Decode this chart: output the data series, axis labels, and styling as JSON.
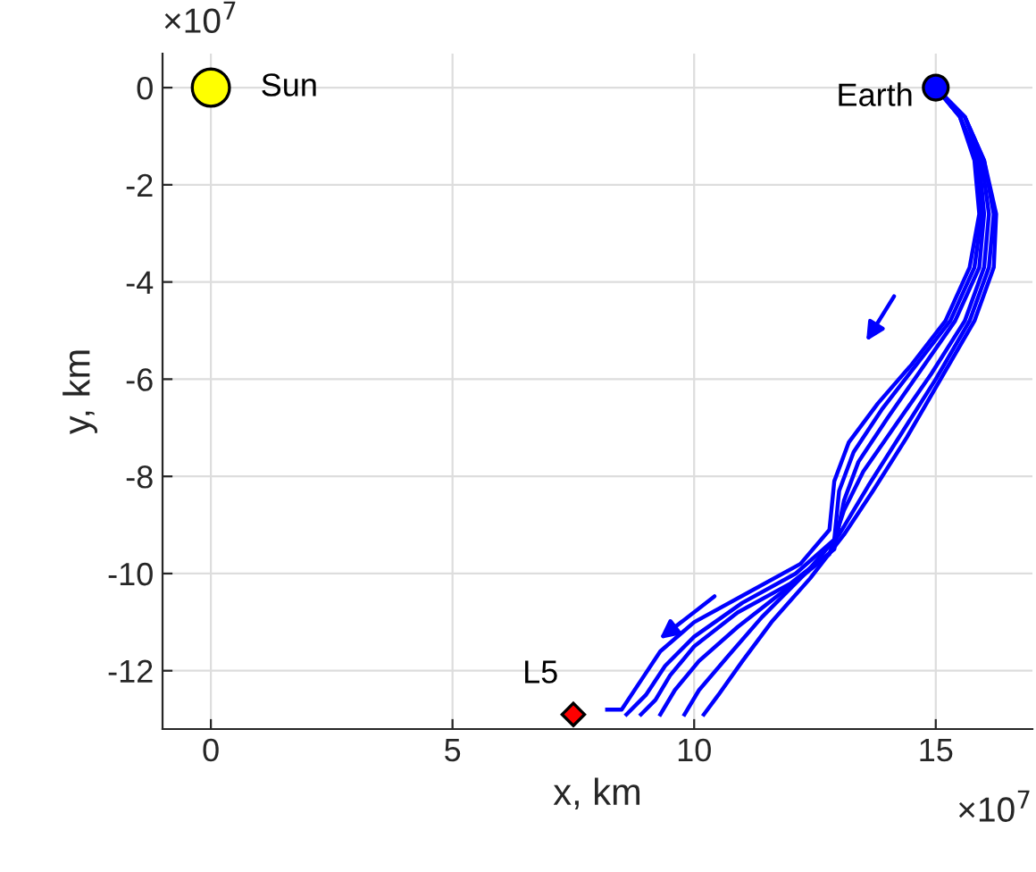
{
  "chart_data": {
    "type": "line",
    "xlabel": "x, km",
    "ylabel": "y, km",
    "xlim": [
      -1,
      17
    ],
    "ylim": [
      -13.2,
      0.7
    ],
    "xticks": [
      0,
      5,
      10,
      15
    ],
    "yticks": [
      -12,
      -10,
      -8,
      -6,
      -4,
      -2,
      0
    ],
    "grid": true,
    "line_style": "solid",
    "annotations": [
      "×10$^{7}$",
      "×10$^{7}$"
    ],
    "series": [
      {
        "color": "#0000ff",
        "x": [
          15,
          15.6,
          16.0,
          16.25,
          16.2,
          15.8,
          15.1,
          14.4,
          13.7,
          13.1,
          12.4,
          11.6,
          11.0,
          10.5,
          10.2
        ],
        "values": [
          0,
          -0.6,
          -1.5,
          -2.6,
          -3.7,
          -4.8,
          -6.0,
          -7.2,
          -8.3,
          -9.2,
          -10.1,
          -11.0,
          -11.8,
          -12.5,
          -12.9
        ]
      },
      {
        "color": "#0000ff",
        "x": [
          15,
          15.6,
          16.0,
          16.2,
          16.1,
          15.7,
          15.0,
          14.3,
          13.6,
          13.0,
          12.3,
          11.4,
          10.7,
          10.1,
          9.8
        ],
        "values": [
          0,
          -0.6,
          -1.5,
          -2.6,
          -3.7,
          -4.8,
          -6.0,
          -7.1,
          -8.2,
          -9.2,
          -10.0,
          -10.9,
          -11.7,
          -12.4,
          -12.9
        ]
      },
      {
        "color": "#0000ff",
        "x": [
          15,
          15.6,
          15.95,
          16.1,
          16.0,
          15.6,
          14.9,
          14.2,
          13.5,
          13.1,
          12.8,
          11.8,
          10.9,
          10.1,
          9.6,
          9.3
        ],
        "values": [
          0,
          -0.6,
          -1.5,
          -2.6,
          -3.7,
          -4.8,
          -5.9,
          -6.9,
          -7.9,
          -8.7,
          -9.6,
          -10.4,
          -11.1,
          -11.8,
          -12.4,
          -12.9
        ]
      },
      {
        "color": "#0000ff",
        "x": [
          15,
          15.5,
          15.9,
          16.0,
          15.9,
          15.4,
          14.7,
          14.0,
          13.4,
          13.1,
          12.9,
          12.0,
          10.9,
          10.0,
          9.5,
          9.2,
          8.9
        ],
        "values": [
          0,
          -0.6,
          -1.5,
          -2.6,
          -3.7,
          -4.8,
          -5.8,
          -6.8,
          -7.7,
          -8.5,
          -9.5,
          -10.2,
          -10.8,
          -11.5,
          -12.1,
          -12.6,
          -12.9
        ]
      },
      {
        "color": "#0000ff",
        "x": [
          15,
          15.5,
          15.85,
          15.95,
          15.8,
          15.3,
          14.6,
          13.9,
          13.3,
          13.0,
          12.9,
          12.1,
          11.0,
          10.0,
          9.4,
          9.0,
          8.6
        ],
        "values": [
          0,
          -0.6,
          -1.5,
          -2.6,
          -3.7,
          -4.8,
          -5.7,
          -6.6,
          -7.5,
          -8.3,
          -9.3,
          -10.0,
          -10.6,
          -11.3,
          -11.9,
          -12.5,
          -12.9
        ]
      },
      {
        "color": "#0000ff",
        "x": [
          15,
          15.5,
          15.8,
          15.9,
          15.7,
          15.2,
          14.5,
          13.8,
          13.2,
          12.9,
          12.8,
          12.2,
          11.1,
          10.0,
          9.3,
          8.9,
          8.5,
          8.2
        ],
        "values": [
          0,
          -0.6,
          -1.5,
          -2.6,
          -3.7,
          -4.8,
          -5.7,
          -6.5,
          -7.3,
          -8.1,
          -9.1,
          -9.8,
          -10.4,
          -11.0,
          -11.6,
          -12.2,
          -12.8,
          -12.8
        ]
      },
      {
        "name": "Sun",
        "type": "scatter",
        "marker": "circle",
        "color": "#ffff00",
        "x": [
          0
        ],
        "values": [
          0
        ]
      },
      {
        "name": "Earth",
        "type": "scatter",
        "marker": "circle",
        "color": "#0000ff",
        "x": [
          15
        ],
        "values": [
          0
        ]
      },
      {
        "name": "L5",
        "type": "scatter",
        "marker": "diamond",
        "color": "#ff0000",
        "x": [
          7.5
        ],
        "values": [
          -12.9
        ]
      }
    ]
  }
}
